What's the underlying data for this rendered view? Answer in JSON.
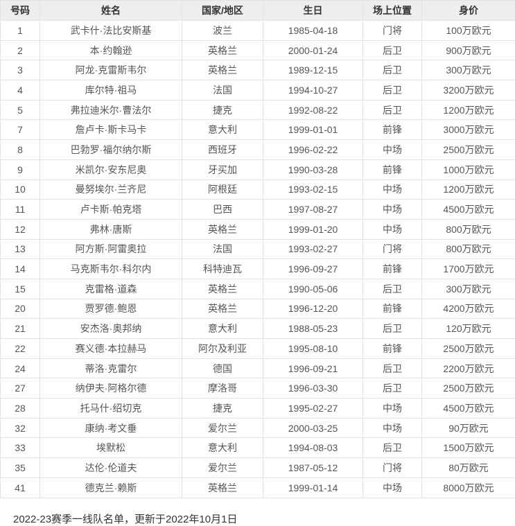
{
  "table": {
    "headers": [
      "号码",
      "姓名",
      "国家/地区",
      "生日",
      "场上位置",
      "身价"
    ],
    "rows": [
      [
        "1",
        "武卡什·法比安斯基",
        "波兰",
        "1985-04-18",
        "门将",
        "100万欧元"
      ],
      [
        "2",
        "本·约翰逊",
        "英格兰",
        "2000-01-24",
        "后卫",
        "900万欧元"
      ],
      [
        "3",
        "阿龙·克雷斯韦尔",
        "英格兰",
        "1989-12-15",
        "后卫",
        "300万欧元"
      ],
      [
        "4",
        "库尔特·祖马",
        "法国",
        "1994-10-27",
        "后卫",
        "3200万欧元"
      ],
      [
        "5",
        "弗拉迪米尔·曹法尔",
        "捷克",
        "1992-08-22",
        "后卫",
        "1200万欧元"
      ],
      [
        "7",
        "詹卢卡·斯卡马卡",
        "意大利",
        "1999-01-01",
        "前锋",
        "3000万欧元"
      ],
      [
        "8",
        "巴勃罗·福尔纳尔斯",
        "西班牙",
        "1996-02-22",
        "中场",
        "2500万欧元"
      ],
      [
        "9",
        "米凯尔·安东尼奥",
        "牙买加",
        "1990-03-28",
        "前锋",
        "1000万欧元"
      ],
      [
        "10",
        "曼努埃尔·兰齐尼",
        "阿根廷",
        "1993-02-15",
        "中场",
        "1200万欧元"
      ],
      [
        "11",
        "卢卡斯·帕克塔",
        "巴西",
        "1997-08-27",
        "中场",
        "4500万欧元"
      ],
      [
        "12",
        "弗林·唐斯",
        "英格兰",
        "1999-01-20",
        "中场",
        "800万欧元"
      ],
      [
        "13",
        "阿方斯·阿雷奥拉",
        "法国",
        "1993-02-27",
        "门将",
        "800万欧元"
      ],
      [
        "14",
        "马克斯韦尔·科尔内",
        "科特迪瓦",
        "1996-09-27",
        "前锋",
        "1700万欧元"
      ],
      [
        "15",
        "克雷格·道森",
        "英格兰",
        "1990-05-06",
        "后卫",
        "300万欧元"
      ],
      [
        "20",
        "贾罗德·鲍恩",
        "英格兰",
        "1996-12-20",
        "前锋",
        "4200万欧元"
      ],
      [
        "21",
        "安杰洛·奥邦纳",
        "意大利",
        "1988-05-23",
        "后卫",
        "120万欧元"
      ],
      [
        "22",
        "赛义德·本拉赫马",
        "阿尔及利亚",
        "1995-08-10",
        "前锋",
        "2500万欧元"
      ],
      [
        "24",
        "蒂洛·克雷尔",
        "德国",
        "1996-09-21",
        "后卫",
        "2200万欧元"
      ],
      [
        "27",
        "纳伊夫·阿格尔德",
        "摩洛哥",
        "1996-03-30",
        "后卫",
        "2500万欧元"
      ],
      [
        "28",
        "托马什·绍切克",
        "捷克",
        "1995-02-27",
        "中场",
        "4500万欧元"
      ],
      [
        "32",
        "康纳·考文垂",
        "爱尔兰",
        "2000-03-25",
        "中场",
        "90万欧元"
      ],
      [
        "33",
        "埃默松",
        "意大利",
        "1994-08-03",
        "后卫",
        "1500万欧元"
      ],
      [
        "35",
        "达伦·伦道夫",
        "爱尔兰",
        "1987-05-12",
        "门将",
        "80万欧元"
      ],
      [
        "41",
        "德克兰·赖斯",
        "英格兰",
        "1999-01-14",
        "中场",
        "8000万欧元"
      ]
    ]
  },
  "footer": {
    "note": "2022-23赛季一线队名单，更新于2022年10月1日"
  },
  "colors": {
    "header_bg": "#eeeeee",
    "border": "#e3e3e3",
    "header_text": "#333333",
    "cell_text": "#555555",
    "footer_text": "#333333"
  }
}
